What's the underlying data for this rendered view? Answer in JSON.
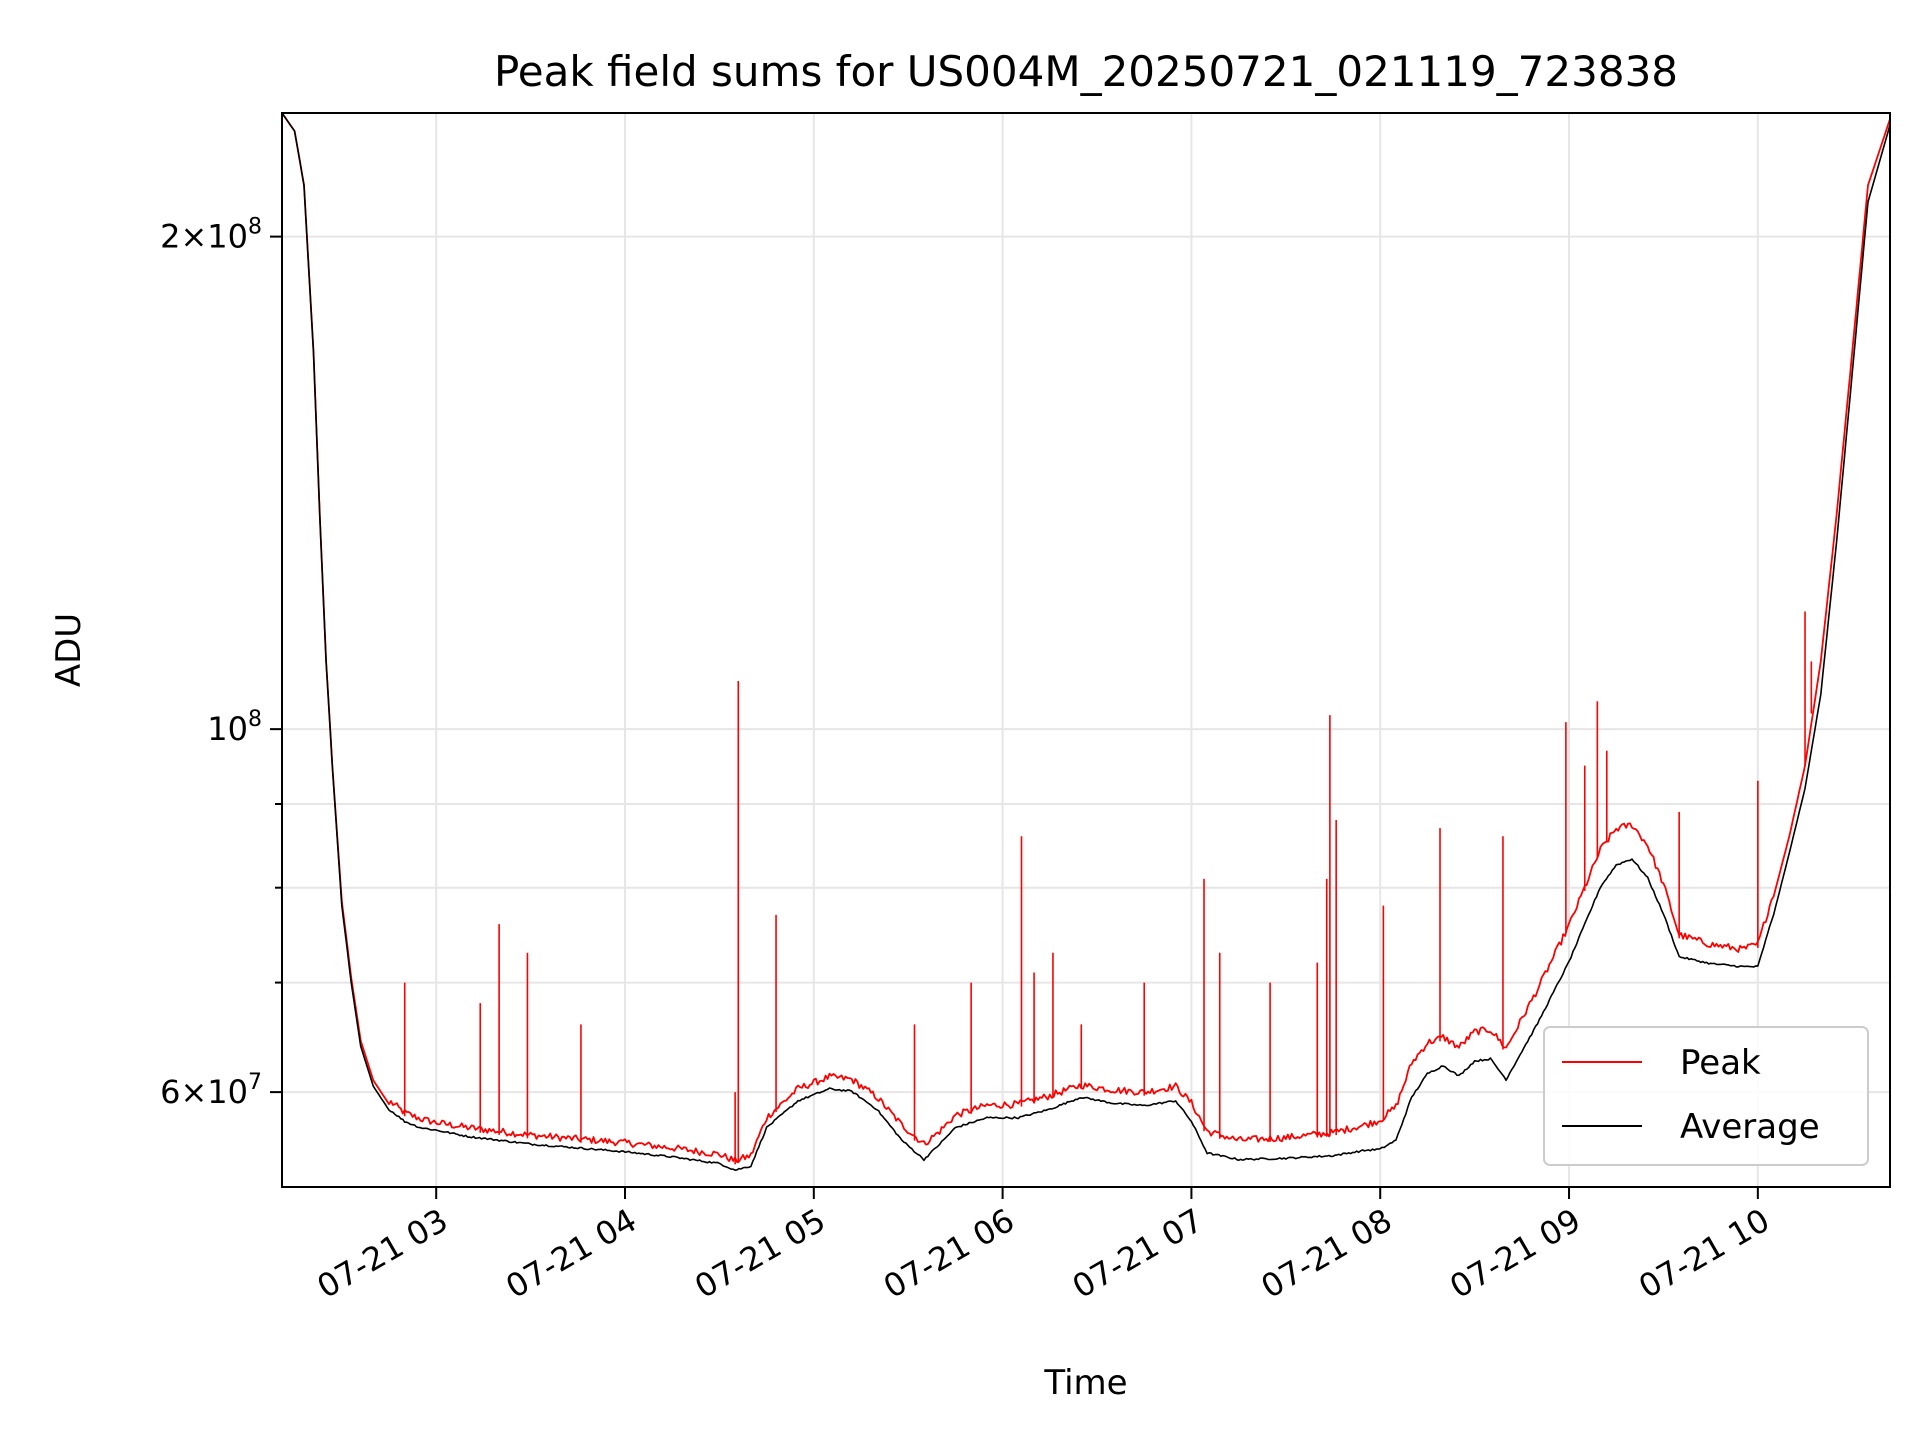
{
  "chart_data": {
    "type": "line",
    "title": "Peak field sums for US004M_20250721_021119_723838",
    "xlabel": "Time",
    "ylabel": "ADU",
    "yscale": "log",
    "grid": true,
    "legend_position": "lower-right",
    "xlim": [
      "07-21 02:11",
      "07-21 10:42"
    ],
    "ylim": [
      52500000,
      238000000
    ],
    "x_ticks": [
      {
        "value": "07-21 03:00",
        "label": "07-21 03"
      },
      {
        "value": "07-21 04:00",
        "label": "07-21 04"
      },
      {
        "value": "07-21 05:00",
        "label": "07-21 05"
      },
      {
        "value": "07-21 06:00",
        "label": "07-21 06"
      },
      {
        "value": "07-21 07:00",
        "label": "07-21 07"
      },
      {
        "value": "07-21 08:00",
        "label": "07-21 08"
      },
      {
        "value": "07-21 09:00",
        "label": "07-21 09"
      },
      {
        "value": "07-21 10:00",
        "label": "07-21 10"
      }
    ],
    "y_ticks": [
      {
        "value": 60000000,
        "base": "6",
        "exp": "7"
      },
      {
        "value": 100000000,
        "base": "",
        "exp": "8"
      },
      {
        "value": 200000000,
        "base": "2",
        "exp": "8"
      }
    ],
    "y_minor_ticks": [
      70000000,
      80000000,
      90000000
    ],
    "series": [
      {
        "name": "Average",
        "color": "#000000",
        "x": [
          "07-21 02:11",
          "07-21 02:15",
          "07-21 02:18",
          "07-21 02:21",
          "07-21 02:23",
          "07-21 02:25",
          "07-21 02:27",
          "07-21 02:30",
          "07-21 02:33",
          "07-21 02:36",
          "07-21 02:40",
          "07-21 02:45",
          "07-21 02:50",
          "07-21 02:55",
          "07-21 03:00",
          "07-21 03:10",
          "07-21 03:20",
          "07-21 03:30",
          "07-21 03:45",
          "07-21 04:00",
          "07-21 04:15",
          "07-21 04:30",
          "07-21 04:35",
          "07-21 04:40",
          "07-21 04:45",
          "07-21 04:55",
          "07-21 05:05",
          "07-21 05:12",
          "07-21 05:20",
          "07-21 05:28",
          "07-21 05:35",
          "07-21 05:40",
          "07-21 05:45",
          "07-21 05:55",
          "07-21 06:05",
          "07-21 06:15",
          "07-21 06:25",
          "07-21 06:35",
          "07-21 06:45",
          "07-21 06:55",
          "07-21 07:00",
          "07-21 07:05",
          "07-21 07:15",
          "07-21 07:30",
          "07-21 07:45",
          "07-21 07:55",
          "07-21 08:00",
          "07-21 08:05",
          "07-21 08:10",
          "07-21 08:15",
          "07-21 08:20",
          "07-21 08:25",
          "07-21 08:30",
          "07-21 08:35",
          "07-21 08:40",
          "07-21 08:50",
          "07-21 09:00",
          "07-21 09:10",
          "07-21 09:15",
          "07-21 09:20",
          "07-21 09:25",
          "07-21 09:30",
          "07-21 09:35",
          "07-21 09:45",
          "07-21 09:55",
          "07-21 10:00",
          "07-21 10:05",
          "07-21 10:10",
          "07-21 10:15",
          "07-21 10:20",
          "07-21 10:25",
          "07-21 10:30",
          "07-21 10:35",
          "07-21 10:42"
        ],
        "values": [
          238000000,
          232000000,
          215000000,
          170000000,
          135000000,
          110000000,
          95000000,
          78000000,
          70000000,
          64000000,
          60500000,
          58500000,
          57500000,
          57000000,
          56800000,
          56300000,
          56000000,
          55700000,
          55400000,
          55100000,
          54700000,
          54200000,
          53700000,
          54000000,
          57000000,
          59200000,
          60200000,
          60000000,
          58500000,
          56000000,
          54500000,
          55700000,
          57000000,
          57800000,
          57800000,
          58500000,
          59500000,
          59000000,
          58800000,
          59200000,
          57500000,
          55000000,
          54500000,
          54600000,
          54800000,
          55200000,
          55300000,
          56000000,
          59500000,
          61500000,
          62200000,
          61300000,
          62600000,
          62800000,
          61000000,
          66000000,
          72000000,
          80000000,
          82500000,
          83200000,
          81000000,
          77000000,
          72500000,
          71800000,
          71500000,
          71500000,
          77000000,
          84000000,
          92000000,
          105000000,
          130000000,
          165000000,
          210000000,
          234000000
        ]
      },
      {
        "name": "Peak",
        "color": "#ff0000",
        "x": [
          "07-21 02:11",
          "07-21 02:15",
          "07-21 02:18",
          "07-21 02:21",
          "07-21 02:23",
          "07-21 02:25",
          "07-21 02:27",
          "07-21 02:30",
          "07-21 02:33",
          "07-21 02:36",
          "07-21 02:40",
          "07-21 02:45",
          "07-21 02:50",
          "07-21 02:55",
          "07-21 03:00",
          "07-21 03:10",
          "07-21 03:20",
          "07-21 03:30",
          "07-21 03:45",
          "07-21 04:00",
          "07-21 04:15",
          "07-21 04:30",
          "07-21 04:35",
          "07-21 04:40",
          "07-21 04:45",
          "07-21 04:55",
          "07-21 05:05",
          "07-21 05:12",
          "07-21 05:20",
          "07-21 05:28",
          "07-21 05:35",
          "07-21 05:40",
          "07-21 05:45",
          "07-21 05:55",
          "07-21 06:05",
          "07-21 06:15",
          "07-21 06:25",
          "07-21 06:35",
          "07-21 06:45",
          "07-21 06:55",
          "07-21 07:00",
          "07-21 07:05",
          "07-21 07:15",
          "07-21 07:30",
          "07-21 07:45",
          "07-21 07:55",
          "07-21 08:00",
          "07-21 08:05",
          "07-21 08:10",
          "07-21 08:15",
          "07-21 08:20",
          "07-21 08:25",
          "07-21 08:30",
          "07-21 08:35",
          "07-21 08:40",
          "07-21 08:50",
          "07-21 09:00",
          "07-21 09:10",
          "07-21 09:15",
          "07-21 09:20",
          "07-21 09:25",
          "07-21 09:30",
          "07-21 09:35",
          "07-21 09:45",
          "07-21 09:55",
          "07-21 10:00",
          "07-21 10:05",
          "07-21 10:10",
          "07-21 10:15",
          "07-21 10:20",
          "07-21 10:25",
          "07-21 10:30",
          "07-21 10:35",
          "07-21 10:42"
        ],
        "values": [
          238000000,
          232000000,
          215000000,
          170000000,
          135000000,
          110000000,
          95000000,
          78500000,
          70500000,
          64500000,
          61000000,
          59000000,
          58000000,
          57500000,
          57200000,
          56800000,
          56500000,
          56200000,
          55900000,
          55600000,
          55200000,
          54700000,
          54200000,
          54600000,
          57600000,
          60000000,
          61000000,
          60800000,
          59300000,
          57000000,
          55500000,
          56500000,
          57800000,
          58600000,
          58700000,
          59400000,
          60300000,
          59900000,
          59700000,
          60200000,
          58800000,
          56500000,
          55800000,
          56000000,
          56400000,
          57000000,
          57400000,
          58500000,
          62200000,
          64000000,
          64500000,
          63600000,
          65000000,
          65200000,
          63500000,
          69000000,
          75500000,
          84000000,
          86500000,
          87000000,
          84500000,
          80000000,
          74500000,
          73500000,
          73000000,
          73500000,
          79000000,
          86000000,
          95000000,
          110000000,
          135000000,
          170000000,
          215000000,
          236000000
        ],
        "spikes": [
          {
            "x": "07-21 02:50",
            "y": 70000000
          },
          {
            "x": "07-21 03:14",
            "y": 68000000
          },
          {
            "x": "07-21 03:20",
            "y": 76000000
          },
          {
            "x": "07-21 03:29",
            "y": 73000000
          },
          {
            "x": "07-21 03:46",
            "y": 66000000
          },
          {
            "x": "07-21 04:35",
            "y": 60000000
          },
          {
            "x": "07-21 04:36",
            "y": 107000000
          },
          {
            "x": "07-21 04:48",
            "y": 77000000
          },
          {
            "x": "07-21 05:32",
            "y": 66000000
          },
          {
            "x": "07-21 05:50",
            "y": 70000000
          },
          {
            "x": "07-21 06:06",
            "y": 86000000
          },
          {
            "x": "07-21 06:10",
            "y": 71000000
          },
          {
            "x": "07-21 06:16",
            "y": 73000000
          },
          {
            "x": "07-21 06:25",
            "y": 66000000
          },
          {
            "x": "07-21 06:45",
            "y": 70000000
          },
          {
            "x": "07-21 07:04",
            "y": 81000000
          },
          {
            "x": "07-21 07:09",
            "y": 73000000
          },
          {
            "x": "07-21 07:25",
            "y": 70000000
          },
          {
            "x": "07-21 07:40",
            "y": 72000000
          },
          {
            "x": "07-21 07:43",
            "y": 81000000
          },
          {
            "x": "07-21 07:44",
            "y": 102000000
          },
          {
            "x": "07-21 07:46",
            "y": 88000000
          },
          {
            "x": "07-21 08:01",
            "y": 78000000
          },
          {
            "x": "07-21 08:19",
            "y": 87000000
          },
          {
            "x": "07-21 08:39",
            "y": 86000000
          },
          {
            "x": "07-21 08:59",
            "y": 101000000
          },
          {
            "x": "07-21 09:05",
            "y": 95000000
          },
          {
            "x": "07-21 09:09",
            "y": 104000000
          },
          {
            "x": "07-21 09:12",
            "y": 97000000
          },
          {
            "x": "07-21 09:35",
            "y": 89000000
          },
          {
            "x": "07-21 10:00",
            "y": 93000000
          },
          {
            "x": "07-21 10:15",
            "y": 118000000
          },
          {
            "x": "07-21 10:17",
            "y": 110000000
          }
        ]
      }
    ],
    "legend": [
      {
        "label": "Peak",
        "color": "#ff0000"
      },
      {
        "label": "Average",
        "color": "#000000"
      }
    ]
  }
}
